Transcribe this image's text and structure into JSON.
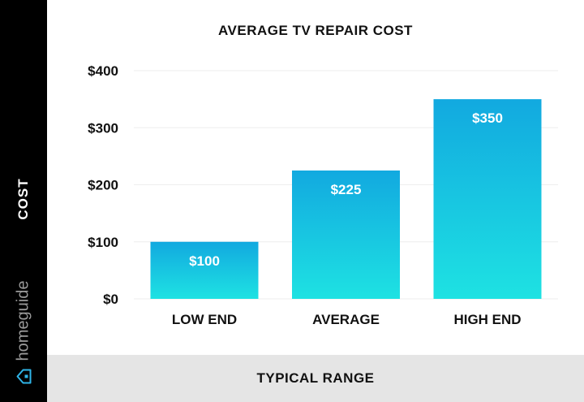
{
  "brand": {
    "name": "homeguide",
    "icon": "house-icon"
  },
  "colors": {
    "bar_top": "#12a9e0",
    "bar_bottom": "#1ee2e2",
    "grid": "#eeeeee",
    "side_panel": "#000000",
    "footer": "#e5e5e5"
  },
  "chart_data": {
    "type": "bar",
    "title": "AVERAGE TV REPAIR COST",
    "xlabel": "TYPICAL RANGE",
    "ylabel": "COST",
    "categories": [
      "LOW END",
      "AVERAGE",
      "HIGH END"
    ],
    "values": [
      100,
      225,
      350
    ],
    "data_labels": [
      "$100",
      "$225",
      "$350"
    ],
    "yticks": [
      0,
      100,
      200,
      300,
      400
    ],
    "ytick_labels": [
      "$0",
      "$100",
      "$200",
      "$300",
      "$400"
    ],
    "ylim": [
      0,
      400
    ],
    "grid": true,
    "legend": "none"
  }
}
